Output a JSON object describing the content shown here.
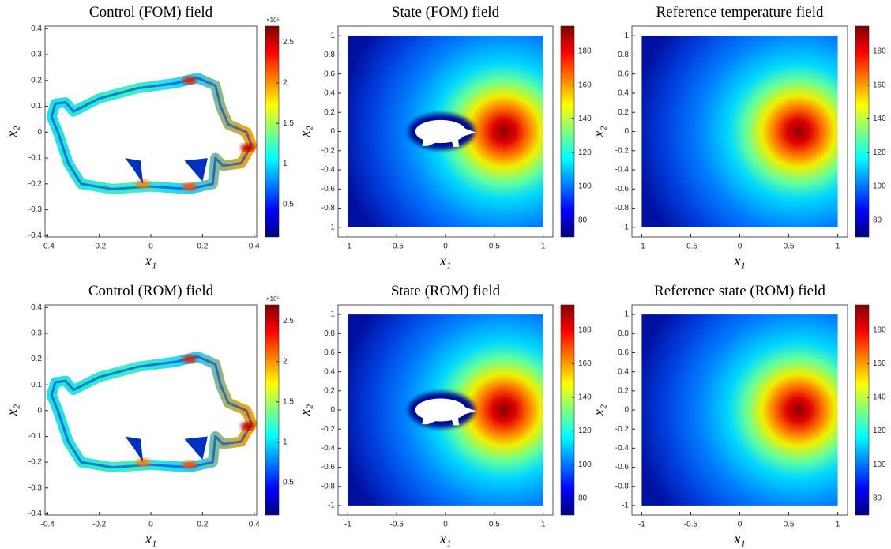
{
  "chart_data": [
    {
      "type": "control-field",
      "title": "Control (FOM) field",
      "x_label": "x₁",
      "y_label": "x₂",
      "xlim": [
        -0.41,
        0.41
      ],
      "ylim": [
        -0.405,
        0.41
      ],
      "xticks": [
        -0.4,
        -0.2,
        0,
        0.2,
        0.4
      ],
      "yticks": [
        -0.4,
        -0.3,
        -0.2,
        -0.1,
        0,
        0.1,
        0.2,
        0.3,
        0.4
      ],
      "colorbar_lim": [
        0.1,
        2.7
      ],
      "colorbar_ticks": [
        0.5,
        1,
        1.5,
        2,
        2.5
      ],
      "colorbar_scale_label": "×10⁵"
    },
    {
      "type": "state-field",
      "title": "State (FOM) field",
      "x_label": "x₁",
      "y_label": "x₂",
      "xlim": [
        -1.1,
        1.1
      ],
      "ylim": [
        -1.1,
        1.1
      ],
      "xticks": [
        -1,
        -0.5,
        0,
        0.5,
        1
      ],
      "yticks": [
        -1,
        -0.8,
        -0.6,
        -0.4,
        -0.2,
        0,
        0.2,
        0.4,
        0.6,
        0.8,
        1
      ],
      "colorbar_lim": [
        70,
        195
      ],
      "colorbar_ticks": [
        80,
        100,
        120,
        140,
        160,
        180
      ]
    },
    {
      "type": "reference-field",
      "title": "Reference temperature field",
      "x_label": "x₁",
      "y_label": "x₂",
      "xlim": [
        -1.1,
        1.1
      ],
      "ylim": [
        -1.1,
        1.1
      ],
      "xticks": [
        -1,
        -0.5,
        0,
        0.5,
        1
      ],
      "yticks": [
        -1,
        -0.8,
        -0.6,
        -0.4,
        -0.2,
        0,
        0.2,
        0.4,
        0.6,
        0.8,
        1
      ],
      "colorbar_lim": [
        70,
        195
      ],
      "colorbar_ticks": [
        80,
        100,
        120,
        140,
        160,
        180
      ]
    },
    {
      "type": "control-field",
      "title": "Control (ROM) field",
      "x_label": "x₁",
      "y_label": "x₂",
      "xlim": [
        -0.41,
        0.41
      ],
      "ylim": [
        -0.405,
        0.41
      ],
      "xticks": [
        -0.4,
        -0.2,
        0,
        0.2,
        0.4
      ],
      "yticks": [
        -0.4,
        -0.3,
        -0.2,
        -0.1,
        0,
        0.1,
        0.2,
        0.3,
        0.4
      ],
      "colorbar_lim": [
        0.1,
        2.7
      ],
      "colorbar_ticks": [
        0.5,
        1,
        1.5,
        2,
        2.5
      ],
      "colorbar_scale_label": "×10⁵"
    },
    {
      "type": "state-field",
      "title": "State (ROM) field",
      "x_label": "x₁",
      "y_label": "x₂",
      "xlim": [
        -1.1,
        1.1
      ],
      "ylim": [
        -1.1,
        1.1
      ],
      "xticks": [
        -1,
        -0.5,
        0,
        0.5,
        1
      ],
      "yticks": [
        -1,
        -0.8,
        -0.6,
        -0.4,
        -0.2,
        0,
        0.2,
        0.4,
        0.6,
        0.8,
        1
      ],
      "colorbar_lim": [
        70,
        195
      ],
      "colorbar_ticks": [
        80,
        100,
        120,
        140,
        160,
        180
      ]
    },
    {
      "type": "reference-field",
      "title": "Reference state (ROM) field",
      "x_label": "x₁",
      "y_label": "x₂",
      "xlim": [
        -1.1,
        1.1
      ],
      "ylim": [
        -1.1,
        1.1
      ],
      "xticks": [
        -1,
        -0.5,
        0,
        0.5,
        1
      ],
      "yticks": [
        -1,
        -0.8,
        -0.6,
        -0.4,
        -0.2,
        0,
        0.2,
        0.4,
        0.6,
        0.8,
        1
      ],
      "colorbar_lim": [
        70,
        195
      ],
      "colorbar_ticks": [
        80,
        100,
        120,
        140,
        160,
        180
      ]
    }
  ]
}
